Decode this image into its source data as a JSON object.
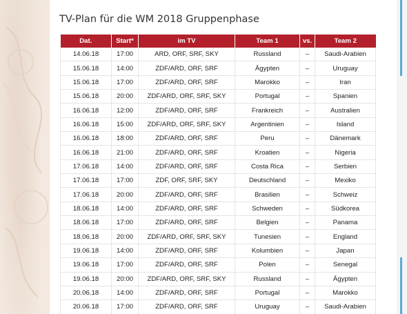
{
  "title": "TV-Plan für die WM 2018 Gruppenphase",
  "columns": [
    "Dat.",
    "Start*",
    "im TV",
    "Team 1",
    "vs.",
    "Team 2"
  ],
  "rows": [
    {
      "date": "14.06.18",
      "start": "17:00",
      "tv": "ARD, ORF, SRF, SKY",
      "team1": "Russland",
      "vs": "–",
      "team2": "Saudi-Arabien"
    },
    {
      "date": "15.06.18",
      "start": "14:00",
      "tv": "ZDF/ARD, ORF, SRF",
      "team1": "Ägypten",
      "vs": "–",
      "team2": "Uruguay"
    },
    {
      "date": "15.06.18",
      "start": "17:00",
      "tv": "ZDF/ARD, ORF, SRF",
      "team1": "Marokko",
      "vs": "–",
      "team2": "Iran"
    },
    {
      "date": "15.06.18",
      "start": "20:00",
      "tv": "ZDF/ARD, ORF, SRF, SKY",
      "team1": "Portugal",
      "vs": "–",
      "team2": "Spanien"
    },
    {
      "date": "16.06.18",
      "start": "12:00",
      "tv": "ZDF/ARD, ORF, SRF",
      "team1": "Frankreich",
      "vs": "–",
      "team2": "Australien"
    },
    {
      "date": "16.06.18",
      "start": "15:00",
      "tv": "ZDF/ARD, ORF, SRF, SKY",
      "team1": "Argentinien",
      "vs": "–",
      "team2": "Island"
    },
    {
      "date": "16.06.18",
      "start": "18:00",
      "tv": "ZDF/ARD, ORF, SRF",
      "team1": "Peru",
      "vs": "–",
      "team2": "Dänemark"
    },
    {
      "date": "16.06.18",
      "start": "21:00",
      "tv": "ZDF/ARD, ORF, SRF",
      "team1": "Kroatien",
      "vs": "–",
      "team2": "Nigeria"
    },
    {
      "date": "17.06.18",
      "start": "14:00",
      "tv": "ZDF/ARD, ORF, SRF",
      "team1": "Costa Rica",
      "vs": "–",
      "team2": "Serbien"
    },
    {
      "date": "17.06.18",
      "start": "17:00",
      "tv": "ZDF, ORF, SRF, SKY",
      "team1": "Deutschland",
      "vs": "–",
      "team2": "Mexiko"
    },
    {
      "date": "17.06.18",
      "start": "20:00",
      "tv": "ZDF/ARD, ORF, SRF",
      "team1": "Brasilien",
      "vs": "–",
      "team2": "Schweiz"
    },
    {
      "date": "18.06.18",
      "start": "14:00",
      "tv": "ZDF/ARD, ORF, SRF",
      "team1": "Schweden",
      "vs": "–",
      "team2": "Südkorea"
    },
    {
      "date": "18.06.18",
      "start": "17:00",
      "tv": "ZDF/ARD, ORF, SRF",
      "team1": "Belgien",
      "vs": "–",
      "team2": "Panama"
    },
    {
      "date": "18.06.18",
      "start": "20:00",
      "tv": "ZDF/ARD, ORF, SRF, SKY",
      "team1": "Tunesien",
      "vs": "–",
      "team2": "England"
    },
    {
      "date": "19.06.18",
      "start": "14:00",
      "tv": "ZDF/ARD, ORF, SRF",
      "team1": "Kolumbien",
      "vs": "–",
      "team2": "Japan"
    },
    {
      "date": "19.06.18",
      "start": "17:00",
      "tv": "ZDF/ARD, ORF, SRF",
      "team1": "Polen",
      "vs": "–",
      "team2": "Senegal"
    },
    {
      "date": "19.06.18",
      "start": "20:00",
      "tv": "ZDF/ARD, ORF, SRF, SKY",
      "team1": "Russland",
      "vs": "–",
      "team2": "Ägypten"
    },
    {
      "date": "20.06.18",
      "start": "14:00",
      "tv": "ZDF/ARD, ORF, SRF",
      "team1": "Portugal",
      "vs": "–",
      "team2": "Marokko"
    },
    {
      "date": "20.06.18",
      "start": "17:00",
      "tv": "ZDF/ARD, ORF, SRF",
      "team1": "Uruguay",
      "vs": "–",
      "team2": "Saudi-Arabien"
    }
  ],
  "colors": {
    "header_bg": "#b3202b",
    "header_text": "#ffffff",
    "accent_bar": "#5aa9d6"
  }
}
